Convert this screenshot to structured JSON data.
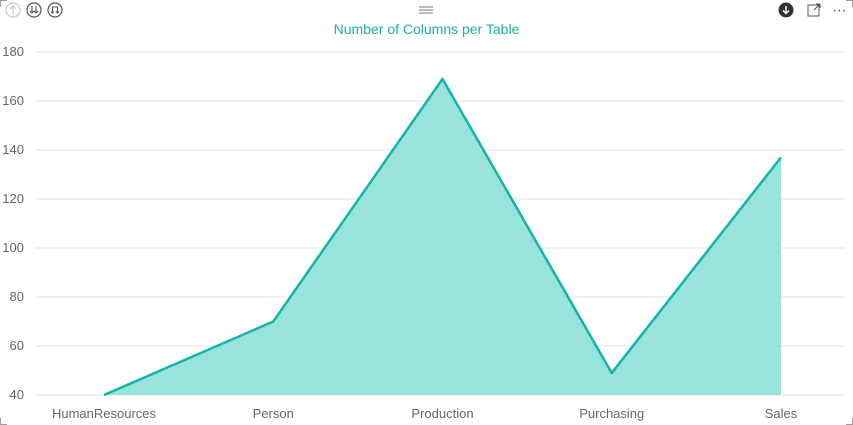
{
  "header": {
    "drill_up_icon": "arrow-up-circle-icon",
    "expand_all_icon": "double-arrow-down-circle-icon",
    "expand_next_icon": "fork-down-circle-icon",
    "drill_mode_icon": "arrow-down-filled-circle-icon",
    "focus_mode_icon": "expand-icon",
    "more_options": "⋯",
    "drag_handle_icon": "grip-lines-icon"
  },
  "colors": {
    "title": "#19b0a6",
    "line": "#12b5a8",
    "fill": "#99e3dd",
    "grid": "#e6e6e6",
    "tick": "#666666"
  },
  "chart_data": {
    "type": "area",
    "title": "Number of Columns per Table",
    "xlabel": "",
    "ylabel": "",
    "categories": [
      "HumanResources",
      "Person",
      "Production",
      "Purchasing",
      "Sales"
    ],
    "values": [
      40,
      70,
      169,
      49,
      137
    ],
    "ylim": [
      40,
      180
    ],
    "yticks": [
      40,
      60,
      80,
      100,
      120,
      140,
      160,
      180
    ],
    "grid": true,
    "legend": "none"
  }
}
